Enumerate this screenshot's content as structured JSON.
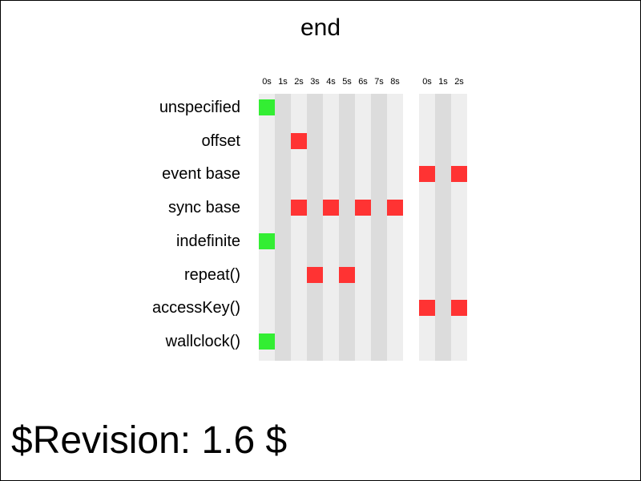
{
  "title": "end",
  "revision": "$Revision: 1.6 $",
  "timeline": {
    "groups": [
      {
        "ticks": [
          "0s",
          "1s",
          "2s",
          "3s",
          "4s",
          "5s",
          "6s",
          "7s",
          "8s"
        ]
      },
      {
        "ticks": [
          "0s",
          "1s",
          "2s"
        ]
      }
    ],
    "rows": [
      {
        "label": "unspecified",
        "marks": [
          {
            "group": 0,
            "tick": 0,
            "color": "green"
          }
        ]
      },
      {
        "label": "offset",
        "marks": [
          {
            "group": 0,
            "tick": 2,
            "color": "red"
          }
        ]
      },
      {
        "label": "event base",
        "marks": [
          {
            "group": 1,
            "tick": 0,
            "color": "red"
          },
          {
            "group": 1,
            "tick": 2,
            "color": "red"
          }
        ]
      },
      {
        "label": "sync base",
        "marks": [
          {
            "group": 0,
            "tick": 2,
            "color": "red"
          },
          {
            "group": 0,
            "tick": 4,
            "color": "red"
          },
          {
            "group": 0,
            "tick": 6,
            "color": "red"
          },
          {
            "group": 0,
            "tick": 8,
            "color": "red"
          }
        ]
      },
      {
        "label": "indefinite",
        "marks": [
          {
            "group": 0,
            "tick": 0,
            "color": "green"
          }
        ]
      },
      {
        "label": "repeat()",
        "marks": [
          {
            "group": 0,
            "tick": 3,
            "color": "red"
          },
          {
            "group": 0,
            "tick": 5,
            "color": "red"
          }
        ]
      },
      {
        "label": "accessKey()",
        "marks": [
          {
            "group": 1,
            "tick": 0,
            "color": "red"
          },
          {
            "group": 1,
            "tick": 2,
            "color": "red"
          }
        ]
      },
      {
        "label": "wallclock()",
        "marks": [
          {
            "group": 0,
            "tick": 0,
            "color": "green"
          }
        ]
      }
    ],
    "colors": {
      "green": "#33ee33",
      "red": "#ff3333"
    }
  }
}
